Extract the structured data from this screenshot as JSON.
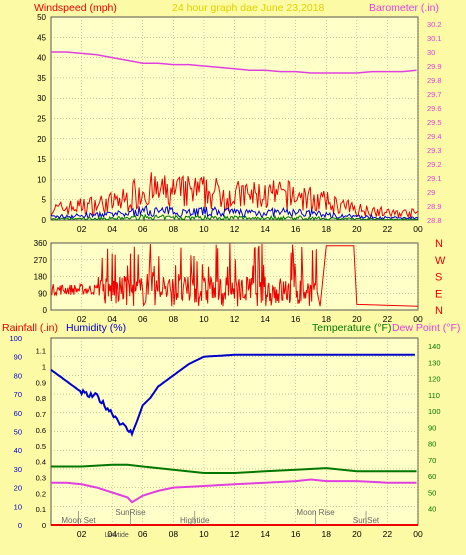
{
  "colors": {
    "background": "#fdfaa5",
    "plot": "#ffffc8",
    "grid": "#96966e",
    "red": "#ee0000",
    "blue": "#0000cc",
    "green": "#007700",
    "magenta": "#e040e0",
    "yellow": "#e0d000",
    "axis_text": "#000000"
  },
  "header": {
    "wind_label": "Windspeed (mph)",
    "graph_title": "24 hour graph dae   June 23,2018",
    "baro_label": "Barometer (.in)"
  },
  "mid_header": {
    "rain_label": "Rainfall (.in)",
    "humidity_label": "Humidity (%)",
    "temp_label": "Temperature (°F)",
    "dew_label": "Dew Point (°F)"
  },
  "compass_labels": [
    "N",
    "W",
    "S",
    "E",
    "N"
  ],
  "x_ticks": [
    "02",
    "04",
    "06",
    "08",
    "10",
    "12",
    "14",
    "16",
    "18",
    "20",
    "22",
    "00"
  ],
  "wind_yticks": [
    "0",
    "5",
    "10",
    "15",
    "20",
    "25",
    "30",
    "35",
    "40",
    "45",
    "50"
  ],
  "baro_yticks": [
    "28.8",
    "28.9",
    "29",
    "29.1",
    "29.2",
    "29.3",
    "29.4",
    "29.5",
    "29.6",
    "29.7",
    "29.8",
    "29.9",
    "30",
    "30.1",
    "30.2"
  ],
  "dir_yticks": [
    "0",
    "90",
    "180",
    "270",
    "360"
  ],
  "hum_yticks": [
    "0",
    "10",
    "20",
    "30",
    "40",
    "50",
    "60",
    "70",
    "80",
    "90",
    "100"
  ],
  "rain_yticks": [
    "0",
    "0.1",
    "0.2",
    "0.3",
    "0.4",
    "0.5",
    "0.6",
    "0.7",
    "0.8",
    "0.9",
    "1",
    "1.1"
  ],
  "temp_yticks": [
    "40",
    "50",
    "60",
    "70",
    "80",
    "90",
    "100",
    "110",
    "120",
    "130",
    "140"
  ],
  "events": [
    {
      "label": "Moon Set",
      "x": 1.8
    },
    {
      "label": "SunRise",
      "x": 5.2
    },
    {
      "label": "Hightide",
      "x": 9.4
    },
    {
      "label": "Moon Rise",
      "x": 17.3
    },
    {
      "label": "SunSet",
      "x": 20.6
    }
  ],
  "lowtide": {
    "label": "Lowtide",
    "x": 4.3
  },
  "chart_data": [
    {
      "type": "line",
      "panel": "wind",
      "xlabel": "",
      "ylabel": "Windspeed (mph)",
      "y2label": "Barometer (.in)",
      "xlim": [
        0,
        24
      ],
      "ylim": [
        0,
        50
      ],
      "y2lim": [
        28.8,
        30.25
      ],
      "series": [
        {
          "name": "Barometer",
          "axis": "right",
          "x": [
            0,
            1,
            2,
            3,
            4,
            5,
            6,
            7,
            8,
            9,
            10,
            11,
            12,
            13,
            14,
            15,
            16,
            17,
            18,
            19,
            20,
            21,
            22,
            23,
            23.9
          ],
          "values": [
            30.0,
            30.0,
            29.99,
            29.98,
            29.96,
            29.94,
            29.92,
            29.92,
            29.91,
            29.91,
            29.9,
            29.89,
            29.88,
            29.87,
            29.87,
            29.86,
            29.86,
            29.85,
            29.85,
            29.85,
            29.85,
            29.86,
            29.86,
            29.86,
            29.87
          ]
        }
      ],
      "gust_profile": {
        "x": [
          0,
          2,
          4,
          5,
          6,
          7,
          8,
          10,
          12,
          14,
          15,
          16,
          17,
          18,
          19,
          20,
          21,
          22,
          23,
          24
        ],
        "values": [
          3,
          4,
          5,
          6,
          9,
          8,
          8,
          8,
          7,
          7,
          7,
          7,
          6,
          5,
          4,
          3,
          3,
          2,
          2,
          2
        ]
      }
    },
    {
      "type": "line",
      "panel": "wind_direction",
      "ylim": [
        0,
        360
      ],
      "xlim": [
        0,
        24
      ],
      "series": [
        {
          "name": "Direction",
          "x": [
            0,
            1,
            2,
            3,
            17.4,
            17.6,
            18,
            19.8,
            20,
            24
          ],
          "values": [
            100,
            95,
            90,
            110,
            100,
            20,
            345,
            345,
            30,
            20
          ]
        }
      ]
    },
    {
      "type": "line",
      "panel": "climate",
      "ylabel": "Humidity (%)",
      "y2label": "Temperature (°F)",
      "xlim": [
        0,
        24
      ],
      "ylim": [
        0,
        100
      ],
      "y2lim": [
        30,
        145
      ],
      "series": [
        {
          "name": "Humidity",
          "axis": "left",
          "x": [
            0,
            0.5,
            1,
            2,
            2.5,
            3,
            3.5,
            4,
            4.5,
            5,
            5.3,
            5.6,
            6,
            6.5,
            7,
            8,
            9,
            10,
            12,
            14,
            16,
            18,
            20,
            22,
            23.9
          ],
          "values": [
            83,
            80,
            77,
            71,
            69,
            69,
            64,
            60,
            55,
            51,
            49,
            55,
            64,
            68,
            74,
            80,
            86,
            90,
            91,
            91,
            91,
            91,
            91,
            91,
            91
          ]
        },
        {
          "name": "Temperature",
          "axis": "right",
          "x": [
            0,
            2,
            4,
            5,
            6,
            8,
            10,
            12,
            14,
            16,
            18,
            20,
            22,
            23.9
          ],
          "values": [
            66,
            66,
            67,
            67,
            66,
            64,
            62,
            62,
            63,
            64,
            65,
            63,
            63,
            63
          ]
        },
        {
          "name": "Dew Point",
          "axis": "right",
          "x": [
            0,
            1,
            2,
            3,
            4,
            5,
            5.3,
            6,
            7,
            8,
            10,
            12,
            14,
            16,
            17,
            18,
            20,
            22,
            23.9
          ],
          "values": [
            56,
            56,
            55,
            53,
            50,
            47,
            44,
            48,
            51,
            53,
            54,
            55,
            56,
            57,
            58,
            57,
            57,
            56,
            56
          ]
        },
        {
          "name": "Rainfall",
          "axis": "left",
          "x": [
            0,
            24
          ],
          "values": [
            0,
            0
          ]
        }
      ]
    }
  ]
}
